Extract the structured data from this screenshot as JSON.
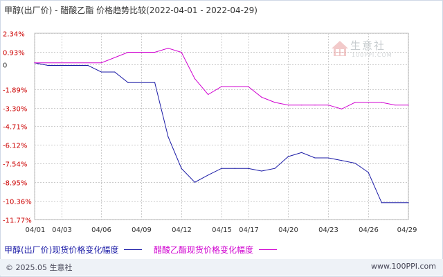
{
  "title": "甲醇(出厂价) - 醋酸乙酯 价格趋势比较(2022-04-01 - 2022-04-29)",
  "watermark": {
    "text": "生意社",
    "sub": "100PPI.COM"
  },
  "footer": {
    "copyright": "© 2025.05 生意社",
    "site": "www.100PPI.com"
  },
  "colors": {
    "series1": "#1a1aa6",
    "series2": "#d000d0",
    "grid": "#cccccc",
    "axis": "#666666"
  },
  "chart_data": {
    "type": "line",
    "title": "甲醇(出厂价) - 醋酸乙酯 价格趋势比较(2022-04-01 - 2022-04-29)",
    "xlabel": "",
    "ylabel": "",
    "x_ticks": [
      "04/01",
      "04/03",
      "04/06",
      "04/09",
      "04/12",
      "04/15",
      "04/17",
      "04/20",
      "04/23",
      "04/26",
      "04/29"
    ],
    "y_ticks": [
      "2.34%",
      "0.93%",
      "0",
      "-1.89%",
      "-3.30%",
      "-4.71%",
      "-6.12%",
      "-7.54%",
      "-8.95%",
      "-10.36%",
      "-11.77%"
    ],
    "y_tick_values": [
      2.34,
      0.93,
      0,
      -1.89,
      -3.3,
      -4.71,
      -6.12,
      -7.54,
      -8.95,
      -10.36,
      -11.77
    ],
    "ylim": [
      -11.77,
      2.34
    ],
    "grid": true,
    "legend_position": "bottom",
    "series": [
      {
        "name": "甲醇(出厂价)现货价格变化幅度",
        "color": "#1a1aa6",
        "points": [
          [
            "04/01",
            0.1
          ],
          [
            "04/02",
            -0.1
          ],
          [
            "04/03",
            -0.1
          ],
          [
            "04/05",
            -0.1
          ],
          [
            "04/06",
            -0.6
          ],
          [
            "04/07",
            -0.6
          ],
          [
            "04/08",
            -1.4
          ],
          [
            "04/10",
            -1.4
          ],
          [
            "04/11",
            -5.5
          ],
          [
            "04/12",
            -7.9
          ],
          [
            "04/13",
            -8.95
          ],
          [
            "04/14",
            -8.4
          ],
          [
            "04/15",
            -7.9
          ],
          [
            "04/16",
            -7.9
          ],
          [
            "04/17",
            -7.9
          ],
          [
            "04/18",
            -8.1
          ],
          [
            "04/19",
            -7.9
          ],
          [
            "04/20",
            -7.0
          ],
          [
            "04/21",
            -6.7
          ],
          [
            "04/22",
            -7.1
          ],
          [
            "04/23",
            -7.1
          ],
          [
            "04/24",
            -7.3
          ],
          [
            "04/25",
            -7.5
          ],
          [
            "04/26",
            -8.2
          ],
          [
            "04/27",
            -10.5
          ],
          [
            "04/29",
            -10.5
          ]
        ]
      },
      {
        "name": "醋酸乙酯现货价格变化幅度",
        "color": "#d000d0",
        "points": [
          [
            "04/01",
            0.1
          ],
          [
            "04/06",
            0.1
          ],
          [
            "04/08",
            0.9
          ],
          [
            "04/10",
            0.9
          ],
          [
            "04/11",
            1.2
          ],
          [
            "04/12",
            0.9
          ],
          [
            "04/13",
            -1.1
          ],
          [
            "04/14",
            -2.3
          ],
          [
            "04/15",
            -1.7
          ],
          [
            "04/16",
            -1.7
          ],
          [
            "04/17",
            -1.7
          ],
          [
            "04/18",
            -2.5
          ],
          [
            "04/19",
            -2.9
          ],
          [
            "04/20",
            -3.1
          ],
          [
            "04/21",
            -3.1
          ],
          [
            "04/22",
            -3.1
          ],
          [
            "04/23",
            -3.1
          ],
          [
            "04/24",
            -3.4
          ],
          [
            "04/25",
            -2.9
          ],
          [
            "04/26",
            -2.9
          ],
          [
            "04/27",
            -2.9
          ],
          [
            "04/28",
            -3.1
          ],
          [
            "04/29",
            -3.1
          ]
        ]
      }
    ]
  }
}
